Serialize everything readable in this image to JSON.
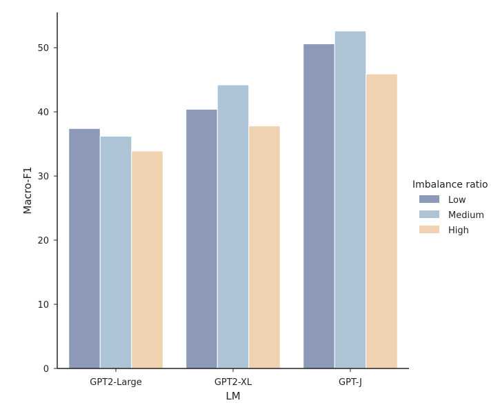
{
  "chart_data": {
    "type": "bar",
    "categories": [
      "GPT2-Large",
      "GPT2-XL",
      "GPT-J"
    ],
    "series": [
      {
        "name": "Low",
        "values": [
          37.4,
          40.4,
          50.6
        ],
        "color": "#8c99b9"
      },
      {
        "name": "Medium",
        "values": [
          36.2,
          44.2,
          52.6
        ],
        "color": "#acc4d5"
      },
      {
        "name": "High",
        "values": [
          33.9,
          37.8,
          45.9
        ],
        "color": "#f0d1b0"
      }
    ],
    "xlabel": "LM",
    "ylabel": "Macro-F1",
    "ylim": [
      0,
      55.5
    ],
    "yticks": [
      0,
      10,
      20,
      30,
      40,
      50
    ],
    "grid": false,
    "legend": {
      "title": "Imbalance ratio",
      "placement": "right"
    }
  }
}
